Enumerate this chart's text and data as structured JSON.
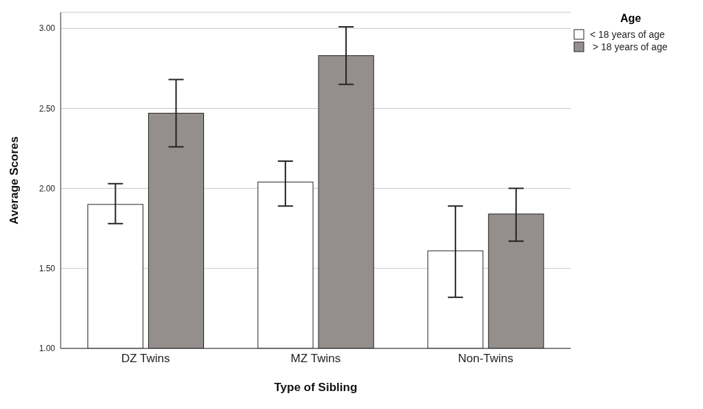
{
  "chart_data": {
    "type": "bar",
    "xlabel": "Type of Sibling",
    "ylabel": "Average Scores",
    "legend_title": "Age",
    "categories": [
      "DZ Twins",
      "MZ Twins",
      "Non-Twins"
    ],
    "series": [
      {
        "name": "< 18 years of age",
        "color": "#ffffff",
        "values": [
          1.9,
          2.04,
          1.61
        ],
        "errors": [
          [
            1.78,
            2.03
          ],
          [
            1.89,
            2.17
          ],
          [
            1.32,
            1.89
          ]
        ]
      },
      {
        "name": " > 18 years of age",
        "color": "#948f8c",
        "values": [
          2.47,
          2.83,
          1.84
        ],
        "errors": [
          [
            2.26,
            2.68
          ],
          [
            2.65,
            3.01
          ],
          [
            1.67,
            2.0
          ]
        ]
      }
    ],
    "ylim": [
      1,
      3.1
    ],
    "yticks": [
      {
        "value": 1,
        "label": "1.00"
      },
      {
        "value": 1.5,
        "label": "1.50"
      },
      {
        "value": 2,
        "label": "2.00"
      },
      {
        "value": 2.5,
        "label": "2.50"
      },
      {
        "value": 3,
        "label": "3.00"
      }
    ],
    "grid": "y",
    "legend": "top right"
  }
}
